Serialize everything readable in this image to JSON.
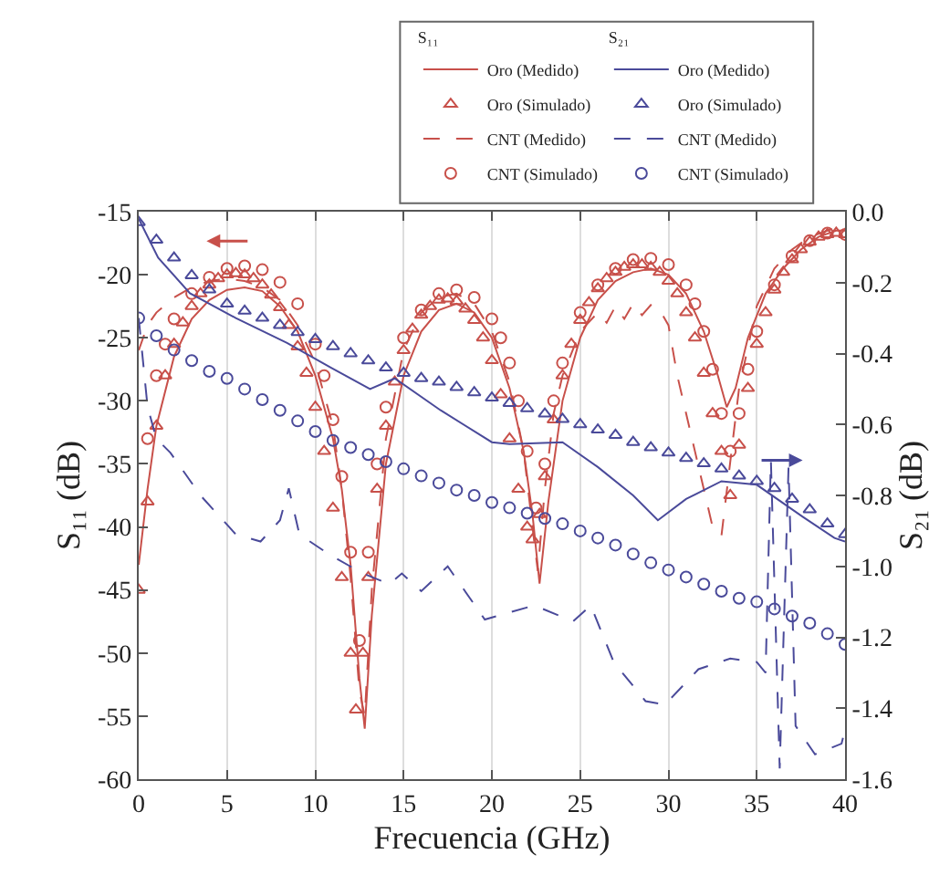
{
  "chart_data": {
    "type": "line",
    "xlabel": "Frecuencia (GHz)",
    "ylabel": "S₁₁ (dB)",
    "y2label": "S₂₁ (dB)",
    "xlim": [
      0,
      40
    ],
    "xticks": [
      0,
      5,
      10,
      15,
      20,
      25,
      30,
      35,
      40
    ],
    "ylim": [
      -60,
      -15
    ],
    "yticks": [
      -60,
      -55,
      -50,
      -45,
      -40,
      -35,
      -30,
      -25,
      -20,
      -15
    ],
    "y2lim": [
      -1.6,
      0
    ],
    "y2ticks": [
      -1.6,
      -1.4,
      -1.2,
      {
        "value": -1,
        "label": "-1.0"
      },
      -0.8,
      -0.6,
      -0.4,
      -0.2,
      {
        "value": 0,
        "label": "0.0"
      }
    ],
    "grid": "x",
    "legend": "top",
    "annotations": [
      "S₁₁",
      "S₂₁"
    ],
    "series": [
      {
        "name": "Oro (Medido)",
        "color": "#c8504a",
        "line_style": "solid",
        "marker": "none",
        "x": [
          0,
          0.5,
          1,
          2,
          3,
          4,
          5,
          6,
          7,
          8,
          9,
          10,
          11,
          11.5,
          12,
          12.5,
          12.8,
          13.2,
          14,
          15,
          16,
          17,
          18,
          19,
          20,
          21,
          21.8,
          22.3,
          22.7,
          23.2,
          24,
          25,
          26,
          27,
          28,
          29,
          30,
          31,
          32,
          32.8,
          33.3,
          33.8,
          34.5,
          35.5,
          36.5,
          37.5,
          38.5,
          39.5,
          40
        ],
        "values": [
          -43,
          -37,
          -32,
          -26.5,
          -23.5,
          -22,
          -21.2,
          -21,
          -21.3,
          -22.5,
          -24.5,
          -28,
          -33,
          -37,
          -43,
          -52,
          -56,
          -47,
          -35,
          -28,
          -24.5,
          -22.8,
          -22.3,
          -23,
          -25,
          -29,
          -34,
          -39,
          -44.5,
          -38,
          -30,
          -25,
          -22,
          -20.5,
          -19.8,
          -19.5,
          -20,
          -21.5,
          -24.5,
          -28,
          -30.5,
          -29,
          -25,
          -21.5,
          -19.5,
          -18,
          -17,
          -16.5,
          -16.5
        ]
      },
      {
        "name": "Oro (Simulado)",
        "color": "#c8504a",
        "type": "scatter",
        "marker": "triangle",
        "x": [
          0,
          0.5,
          1,
          1.5,
          2,
          2.5,
          3,
          3.5,
          4,
          4.5,
          5,
          5.5,
          6,
          6.5,
          7,
          7.5,
          8,
          8.5,
          9,
          9.5,
          10,
          10.5,
          11,
          11.5,
          12,
          12.3,
          12.7,
          13,
          13.5,
          14,
          14.5,
          15,
          15.5,
          16,
          16.5,
          17,
          17.5,
          18,
          18.5,
          19,
          19.5,
          20,
          20.5,
          21,
          21.5,
          22,
          22.3,
          22.7,
          23,
          23.5,
          24,
          24.5,
          25,
          25.5,
          26,
          26.5,
          27,
          27.5,
          28,
          28.5,
          29,
          29.5,
          30,
          30.5,
          31,
          31.5,
          32,
          32.5,
          33,
          33.5,
          34,
          34.5,
          35,
          35.5,
          36,
          36.5,
          37,
          37.5,
          38,
          38.5,
          39,
          39.5,
          40
        ],
        "values": [
          -45,
          -38,
          -32,
          -28,
          -25.5,
          -23.8,
          -22.5,
          -21.5,
          -20.8,
          -20.3,
          -20,
          -19.9,
          -20,
          -20.3,
          -20.8,
          -21.6,
          -22.6,
          -24,
          -25.7,
          -27.8,
          -30.5,
          -34,
          -38.5,
          -44,
          -50,
          -54.5,
          -50,
          -44,
          -37,
          -32,
          -28.5,
          -26,
          -24.3,
          -23.2,
          -22.5,
          -22,
          -21.9,
          -22.1,
          -22.7,
          -23.6,
          -25,
          -26.8,
          -29.5,
          -33,
          -37,
          -40,
          -41,
          -39,
          -36,
          -31.5,
          -28,
          -25.5,
          -23.6,
          -22.2,
          -21.1,
          -20.3,
          -19.8,
          -19.4,
          -19.2,
          -19.2,
          -19.4,
          -19.8,
          -20.5,
          -21.5,
          -23,
          -25,
          -27.8,
          -31,
          -34,
          -37.5,
          -33.5,
          -29,
          -25.5,
          -23,
          -21.2,
          -19.8,
          -18.8,
          -18,
          -17.4,
          -17,
          -16.8,
          -16.7,
          -16.8
        ]
      },
      {
        "name": "CNT (Medido)",
        "color": "#c8504a",
        "line_style": "dashed",
        "marker": "none",
        "x": [
          0,
          0.5,
          1,
          2,
          3,
          4,
          5,
          6,
          7,
          8,
          9,
          10,
          11,
          11.5,
          12,
          12.5,
          12.8,
          13.2,
          14,
          15,
          16,
          17,
          18,
          19,
          20,
          21,
          21.8,
          22.3,
          22.6,
          23,
          23.5,
          24,
          25,
          26,
          26.5,
          27,
          27.5,
          28,
          28.5,
          29,
          29.5,
          30,
          30.5,
          31,
          31.5,
          32,
          32.5,
          33,
          33.4,
          34,
          35,
          36,
          37,
          38,
          39,
          40
        ],
        "values": [
          -26,
          -24,
          -23,
          -21.8,
          -21,
          -20.5,
          -20.3,
          -20.5,
          -21,
          -22,
          -24,
          -27,
          -32,
          -37,
          -44,
          -53,
          -55,
          -45,
          -33,
          -26,
          -23,
          -21.8,
          -21.5,
          -22.3,
          -24.5,
          -28.5,
          -34,
          -40,
          -43.5,
          -37,
          -31,
          -28,
          -24.5,
          -23,
          -23.8,
          -22.5,
          -23.5,
          -22.3,
          -23.2,
          -22.4,
          -22.8,
          -24,
          -28,
          -31,
          -34,
          -37,
          -40,
          -40.7,
          -36,
          -29,
          -22.5,
          -19.5,
          -18,
          -17,
          -16.5,
          -16
        ]
      },
      {
        "name": "CNT (Simulado)",
        "color": "#c8504a",
        "type": "scatter",
        "marker": "circle",
        "x": [
          0.5,
          1,
          1.5,
          2,
          3,
          4,
          5,
          6,
          7,
          8,
          9,
          10,
          10.5,
          11,
          11.5,
          12,
          12.5,
          13,
          13.5,
          14,
          15,
          16,
          17,
          18,
          19,
          20,
          20.5,
          21,
          21.5,
          22,
          22.5,
          23,
          23.5,
          24,
          25,
          26,
          27,
          28,
          29,
          30,
          31,
          31.5,
          32,
          32.5,
          33,
          33.5,
          34,
          34.5,
          35,
          36,
          37,
          38,
          39,
          40
        ],
        "values": [
          -33,
          -28,
          -25.5,
          -23.5,
          -21.5,
          -20.2,
          -19.5,
          -19.3,
          -19.6,
          -20.6,
          -22.3,
          -25.5,
          -28,
          -31.5,
          -36,
          -42,
          -49,
          -42,
          -35,
          -30.5,
          -25,
          -22.8,
          -21.5,
          -21.2,
          -21.8,
          -23.5,
          -25,
          -27,
          -30,
          -34,
          -38.5,
          -35,
          -30,
          -27,
          -23,
          -20.8,
          -19.5,
          -18.8,
          -18.7,
          -19.2,
          -20.8,
          -22.3,
          -24.5,
          -27.5,
          -31,
          -34,
          -31,
          -27.5,
          -24.5,
          -20.8,
          -18.5,
          -17.3,
          -16.7,
          -16.8
        ]
      },
      {
        "name": "Oro (Medido)",
        "color": "#4a4a9a",
        "axis": "y2",
        "line_style": "solid",
        "marker": "none",
        "x": [
          0,
          1.1,
          2.9,
          5.5,
          8.4,
          10.9,
          13.1,
          14.5,
          17.1,
          20,
          21,
          24,
          26,
          28,
          29.4,
          31,
          33,
          35,
          37.6,
          39.4,
          40
        ],
        "values": [
          -0.02,
          -0.13,
          -0.23,
          -0.3,
          -0.37,
          -0.44,
          -0.5,
          -0.47,
          -0.56,
          -0.65,
          -0.655,
          -0.65,
          -0.72,
          -0.8,
          -0.87,
          -0.81,
          -0.76,
          -0.77,
          -0.86,
          -0.92,
          -0.93
        ]
      },
      {
        "name": "Oro (Simulado)",
        "color": "#4a4a9a",
        "type": "scatter",
        "axis": "y2",
        "marker": "triangle",
        "x": [
          0,
          1,
          2,
          3,
          4,
          5,
          6,
          7,
          8,
          9,
          10,
          11,
          12,
          13,
          14,
          15,
          16,
          17,
          18,
          19,
          20,
          21,
          22,
          23,
          24,
          25,
          26,
          27,
          28,
          29,
          30,
          31,
          32,
          33,
          34,
          35,
          36,
          37,
          38,
          39,
          40
        ],
        "values": [
          -0.03,
          -0.08,
          -0.13,
          -0.18,
          -0.22,
          -0.26,
          -0.28,
          -0.3,
          -0.32,
          -0.34,
          -0.36,
          -0.38,
          -0.4,
          -0.42,
          -0.44,
          -0.455,
          -0.47,
          -0.48,
          -0.495,
          -0.51,
          -0.525,
          -0.54,
          -0.555,
          -0.57,
          -0.585,
          -0.6,
          -0.615,
          -0.63,
          -0.65,
          -0.665,
          -0.68,
          -0.695,
          -0.71,
          -0.725,
          -0.745,
          -0.76,
          -0.78,
          -0.81,
          -0.84,
          -0.88,
          -0.91
        ]
      },
      {
        "name": "CNT (Medido)",
        "color": "#4a4a9a",
        "axis": "y2",
        "line_style": "dashed",
        "marker": "none",
        "x": [
          0,
          0.5,
          1,
          1.8,
          3.5,
          5.5,
          6.9,
          8,
          8.5,
          9.1,
          10.9,
          12.7,
          14.2,
          14.9,
          16,
          17.5,
          19.6,
          22.4,
          24.6,
          25.6,
          26.9,
          28.7,
          29.8,
          31.7,
          33.5,
          35,
          35.5,
          35.8,
          36.3,
          36.8,
          37.2,
          38.3,
          39.8,
          40
        ],
        "values": [
          -0.3,
          -0.55,
          -0.64,
          -0.68,
          -0.8,
          -0.91,
          -0.93,
          -0.87,
          -0.78,
          -0.91,
          -0.97,
          -1.02,
          -1.05,
          -1.02,
          -1.07,
          -1,
          -1.15,
          -1.11,
          -1.155,
          -1.11,
          -1.27,
          -1.38,
          -1.39,
          -1.29,
          -1.26,
          -1.27,
          -1.3,
          -0.7,
          -1.57,
          -0.72,
          -1.45,
          -1.53,
          -1.5,
          -1.46
        ]
      },
      {
        "name": "CNT (Simulado)",
        "color": "#4a4a9a",
        "type": "scatter",
        "axis": "y2",
        "marker": "circle",
        "x": [
          0,
          1,
          2,
          3,
          4,
          5,
          6,
          7,
          8,
          9,
          10,
          11,
          12,
          13,
          14,
          15,
          16,
          17,
          18,
          19,
          20,
          21,
          22,
          23,
          24,
          25,
          26,
          27,
          28,
          29,
          30,
          31,
          32,
          33,
          34,
          35,
          36,
          37,
          38,
          39,
          40
        ],
        "values": [
          -0.3,
          -0.35,
          -0.39,
          -0.42,
          -0.45,
          -0.47,
          -0.5,
          -0.53,
          -0.56,
          -0.59,
          -0.62,
          -0.645,
          -0.665,
          -0.685,
          -0.705,
          -0.725,
          -0.745,
          -0.765,
          -0.785,
          -0.8,
          -0.82,
          -0.835,
          -0.85,
          -0.865,
          -0.88,
          -0.9,
          -0.92,
          -0.94,
          -0.965,
          -0.99,
          -1.01,
          -1.03,
          -1.05,
          -1.07,
          -1.09,
          -1.1,
          -1.12,
          -1.14,
          -1.16,
          -1.19,
          -1.22
        ]
      }
    ]
  }
}
